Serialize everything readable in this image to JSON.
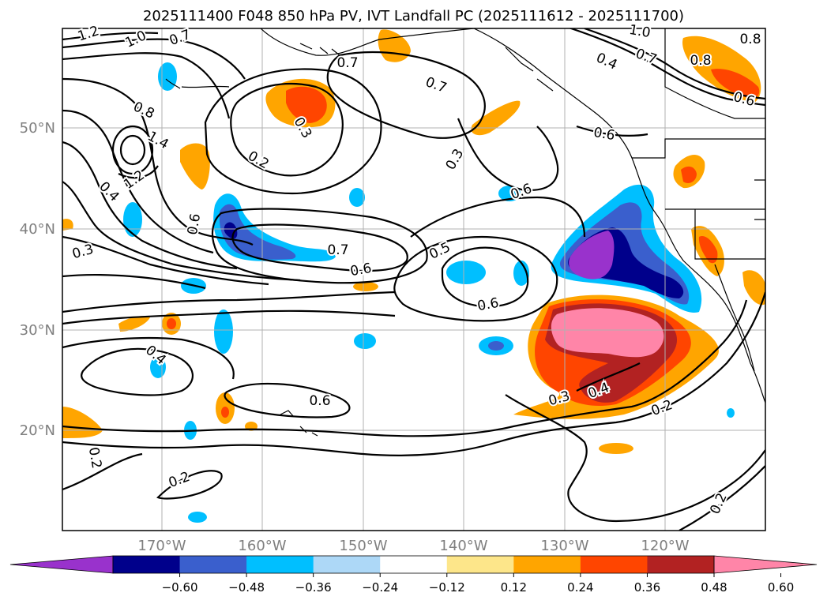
{
  "title": "2025111400 F048 850 hPa PV, IVT Landfall PC (2025111612 - 2025111700)",
  "map": {
    "lat_labels": [
      "50°N",
      "40°N",
      "30°N",
      "20°N"
    ],
    "lon_labels": [
      "170°W",
      "160°W",
      "150°W",
      "140°W",
      "130°W",
      "120°W"
    ],
    "contour_labels": [
      "1.2",
      "1.0",
      "0.7",
      "0.7",
      "0.7",
      "0.8",
      "0.3",
      "1.4",
      "1.2",
      "0.4",
      "0.2",
      "0.3",
      "0.6",
      "0.6",
      "0.3",
      "0.7",
      "0.6",
      "0.5",
      "0.6",
      "0.4",
      "0.3",
      "0.4",
      "0.2",
      "0.2",
      "0.2",
      "0.2",
      "1.0",
      "0.7",
      "0.4",
      "0.8",
      "0.6",
      "0.6",
      "0.8",
      "0.6"
    ],
    "colors": {
      "grid": "#b0b0b0",
      "contour": "#000000",
      "coast": "#000000"
    }
  },
  "colorbar": {
    "ticks": [
      "−0.60",
      "−0.48",
      "−0.36",
      "−0.24",
      "−0.12",
      "0.12",
      "0.24",
      "0.36",
      "0.48",
      "0.60"
    ],
    "colors": [
      "#9932cc",
      "#00008b",
      "#3a5fcd",
      "#00bfff",
      "#add8f7",
      "#ffffff",
      "#fde68a",
      "#ffa500",
      "#ff4500",
      "#b22222",
      "#ff85a8"
    ]
  }
}
